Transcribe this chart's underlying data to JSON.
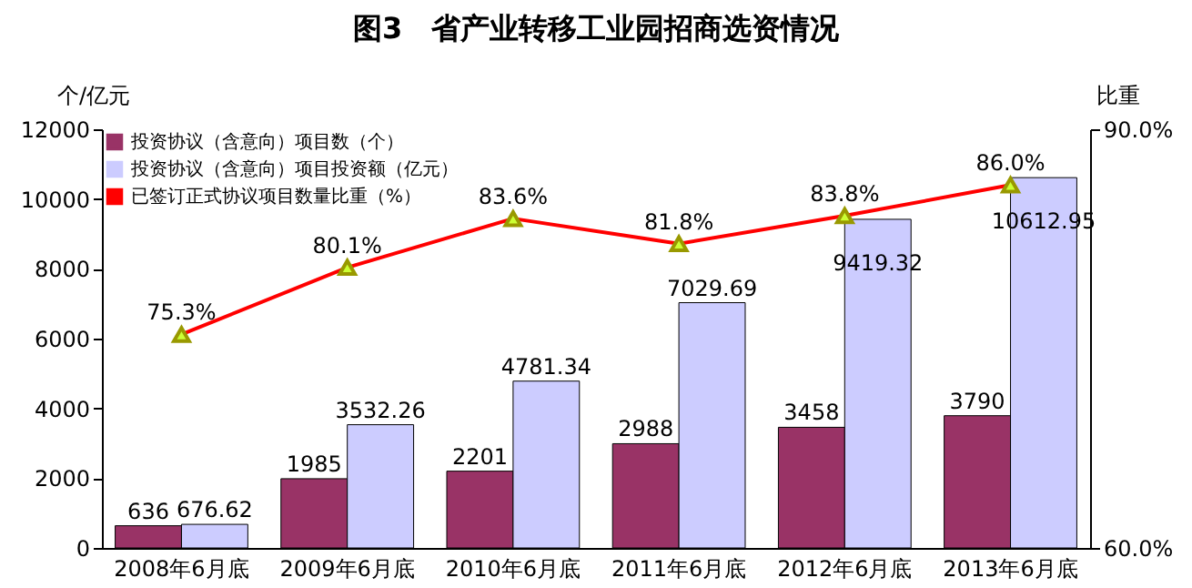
{
  "chart_data": {
    "type": "bar",
    "title": "图3　省产业转移工业园招商选资情况",
    "ylabel": "个/亿元",
    "y2label": "比重",
    "categories": [
      "2008年6月底",
      "2009年6月底",
      "2010年6月底",
      "2011年6月底",
      "2012年6月底",
      "2013年6月底"
    ],
    "series": [
      {
        "name": "投资协议（含意向）项目数（个）",
        "color": "#993366",
        "values": [
          636,
          1985,
          2201,
          2988,
          3458,
          3790
        ]
      },
      {
        "name": "投资协议（含意向）项目投资额（亿元）",
        "color": "#ccccff",
        "values": [
          676.62,
          3532.26,
          4781.34,
          7029.69,
          9419.32,
          10612.95
        ]
      },
      {
        "name": "已签订正式协议项目数量比重（%）",
        "type": "line",
        "axis": "y2",
        "color": "#ff0000",
        "marker": "triangle",
        "values": [
          75.3,
          80.1,
          83.6,
          81.8,
          83.8,
          86.0
        ],
        "value_labels": [
          "75.3%",
          "80.1%",
          "83.6%",
          "81.8%",
          "83.8%",
          "86.0%"
        ]
      }
    ],
    "ylim": [
      0,
      12000
    ],
    "yticks": [
      0,
      2000,
      4000,
      6000,
      8000,
      10000,
      12000
    ],
    "y2lim": [
      60,
      90
    ],
    "y2ticks": [
      {
        "value": 60,
        "label": "60.0%"
      },
      {
        "value": 90,
        "label": "90.0%"
      }
    ],
    "data_labels": true,
    "legend": "top left",
    "grid": false
  }
}
